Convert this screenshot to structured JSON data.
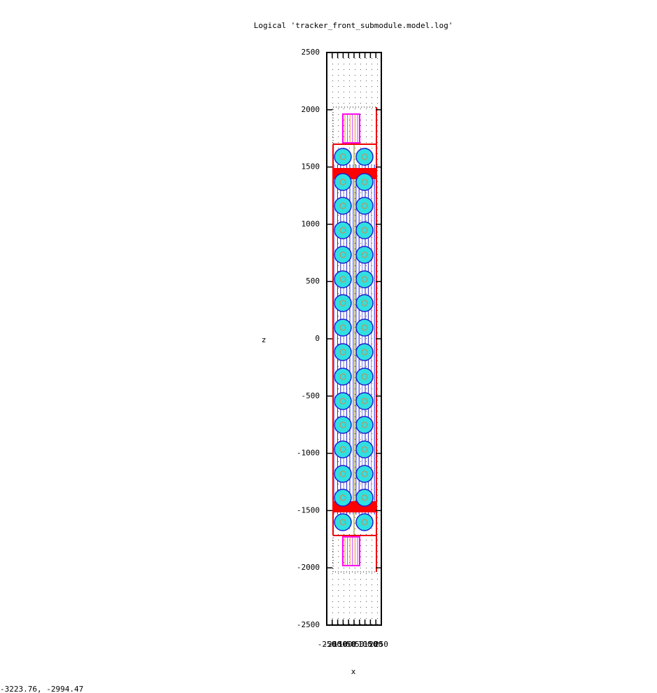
{
  "chart_data": {
    "type": "geometry",
    "title": "Logical 'tracker_front_submodule.model.log'",
    "x_label": "x",
    "y_label": "z",
    "xlim": [
      -250,
      250
    ],
    "xticks": [
      -250,
      -200,
      -150,
      -100,
      -50,
      0,
      50,
      100,
      150,
      200,
      250
    ],
    "ylim": [
      -2500,
      2500
    ],
    "yticks": [
      -2500,
      -2000,
      -1500,
      -1000,
      -500,
      0,
      500,
      1000,
      1500,
      2000,
      2500
    ],
    "grid": true
  },
  "status": {
    "mouse_coordinates": "-3223.76, -2994.47"
  }
}
